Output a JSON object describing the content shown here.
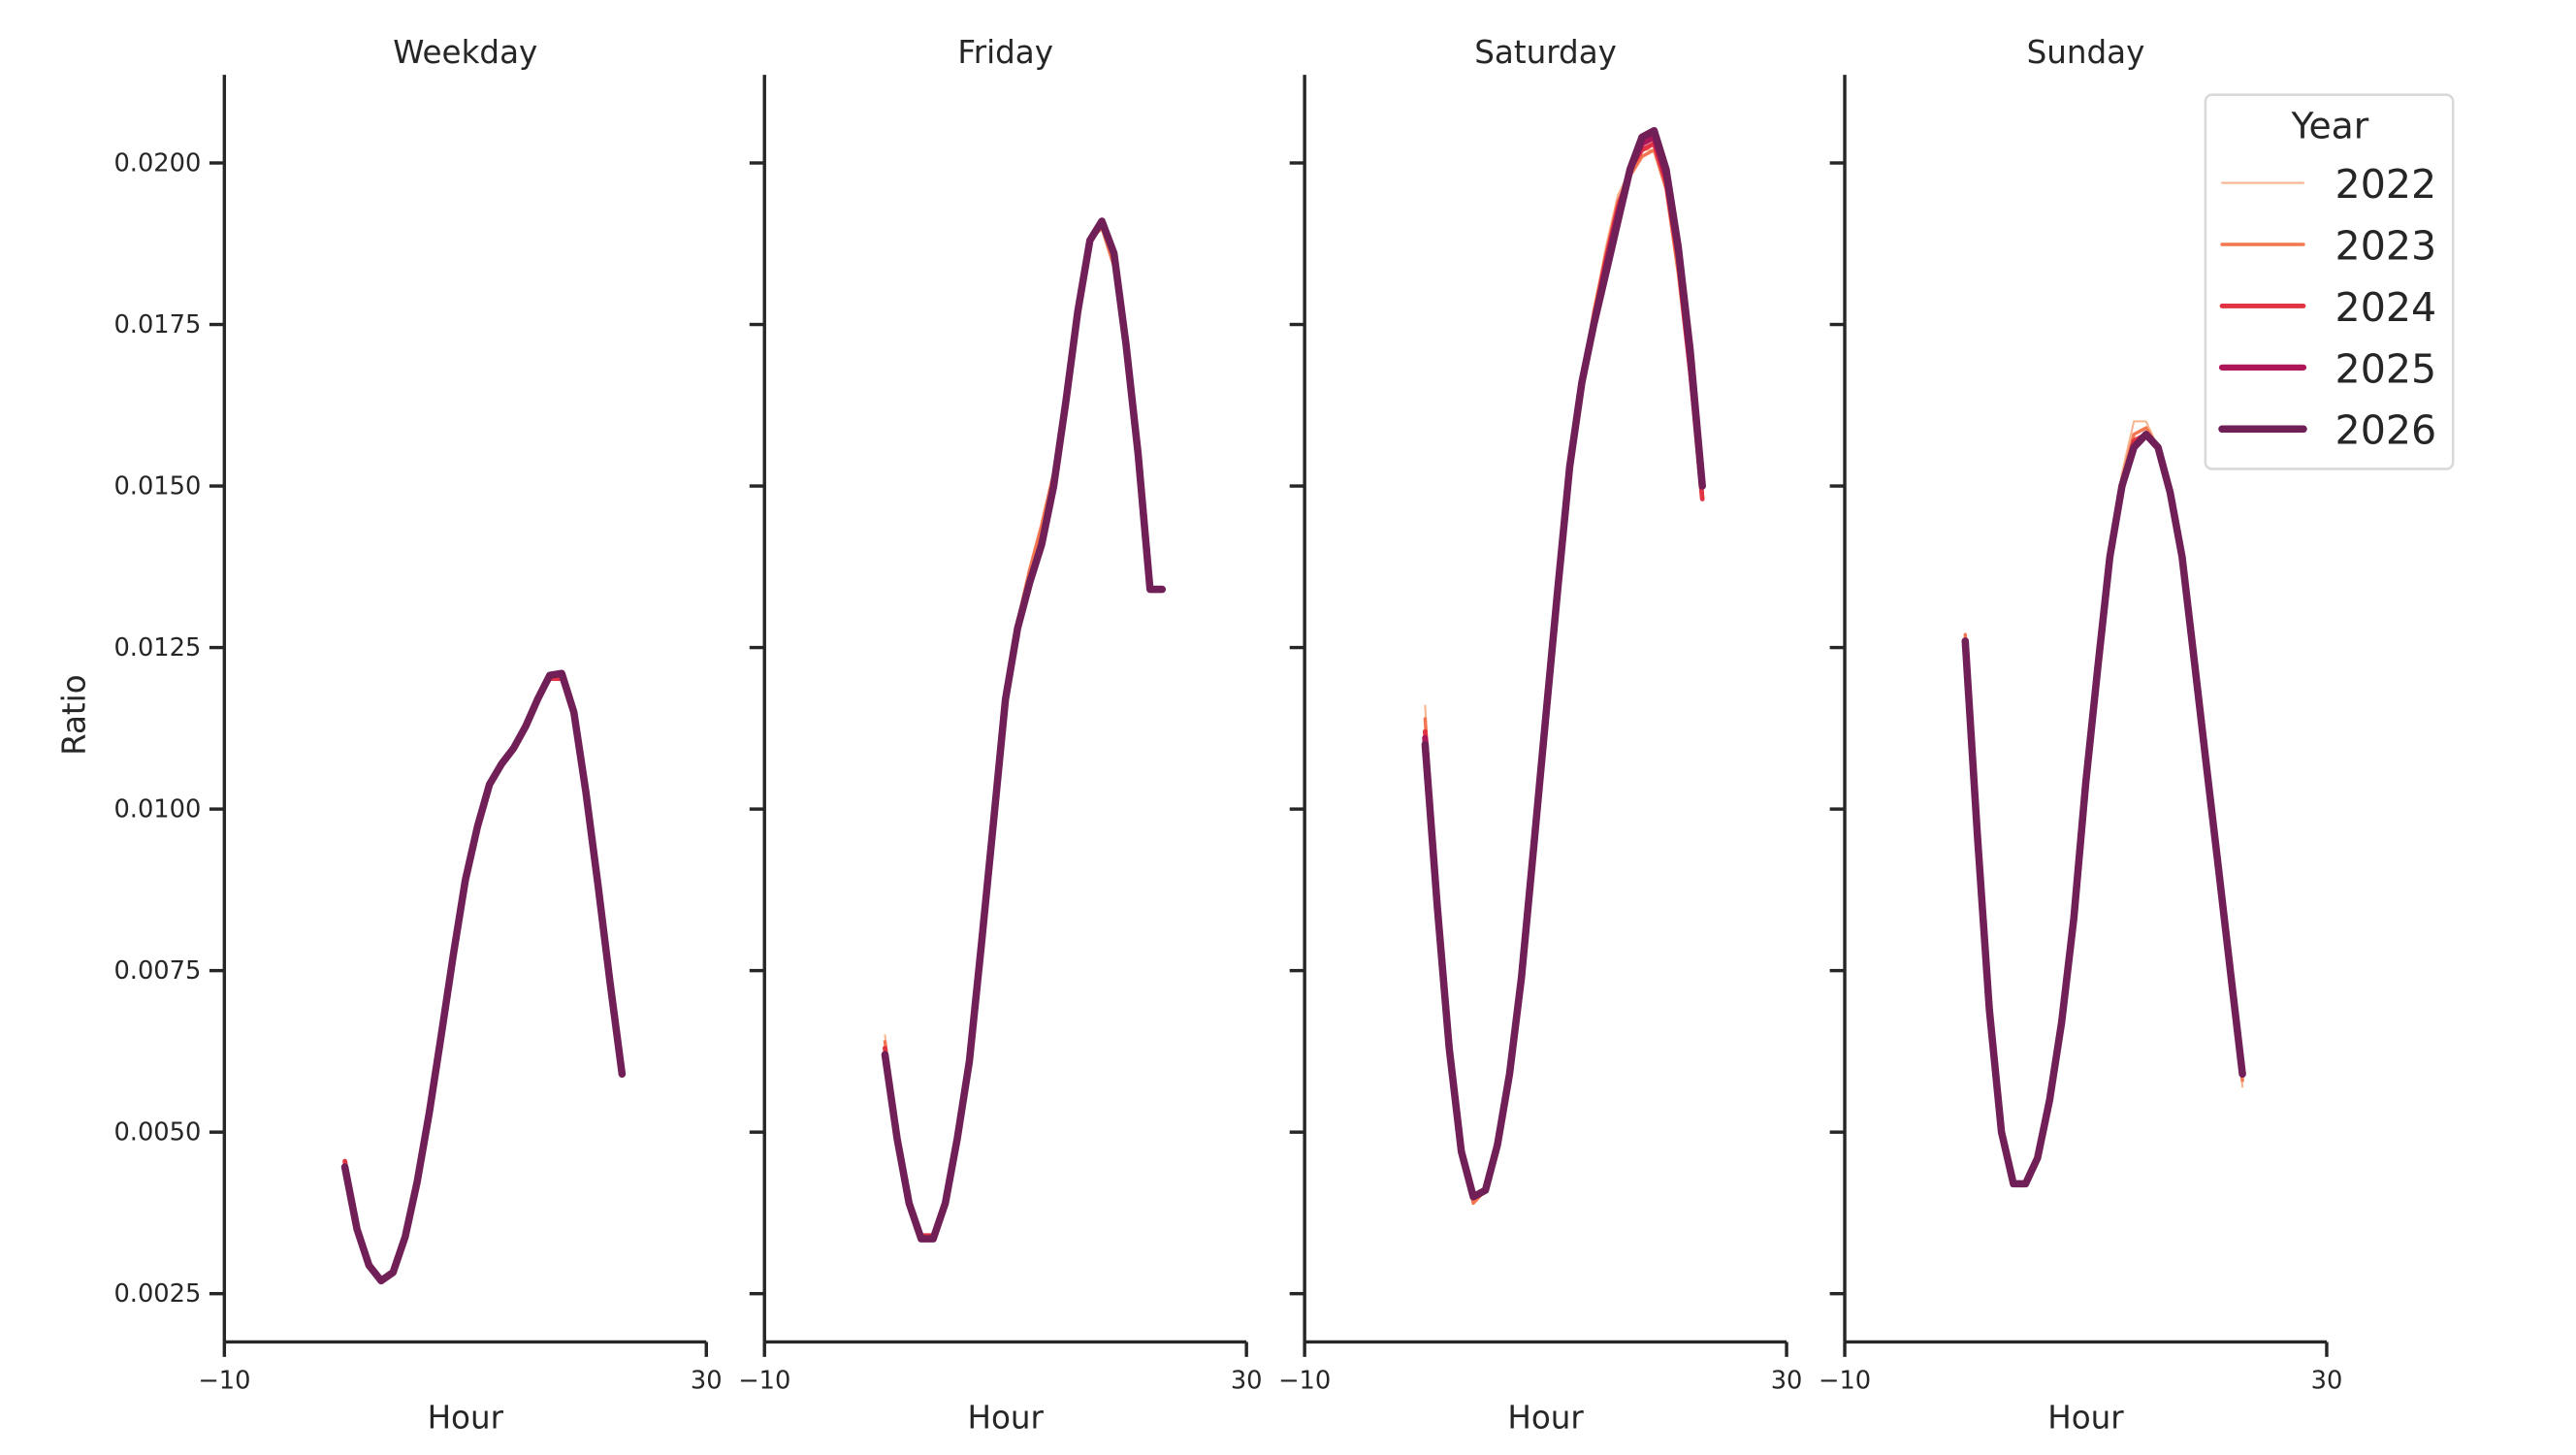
{
  "figure": {
    "y_axis_label": "Ratio",
    "x_axis_label": "Hour"
  },
  "legend": {
    "title": "Year",
    "items": [
      {
        "label": "2022",
        "color": "#f6b48f",
        "width": 1.2
      },
      {
        "label": "2023",
        "color": "#f37651",
        "width": 2.0
      },
      {
        "label": "2024",
        "color": "#e13342",
        "width": 2.8
      },
      {
        "label": "2025",
        "color": "#ad1759",
        "width": 3.6
      },
      {
        "label": "2026",
        "color": "#701f57",
        "width": 4.4
      }
    ]
  },
  "chart_data": {
    "type": "line",
    "title": "",
    "xlabel": "Hour",
    "ylabel": "Ratio",
    "xlim": [
      -10,
      30
    ],
    "xticks": [
      "−10",
      "30"
    ],
    "ylim": [
      0.0017,
      0.0214
    ],
    "yticks": [
      "0.0025",
      "0.0050",
      "0.0075",
      "0.0100",
      "0.0125",
      "0.0150",
      "0.0175",
      "0.0200"
    ],
    "grid": false,
    "legend_position": "upper right",
    "x": [
      0,
      1,
      2,
      3,
      4,
      5,
      6,
      7,
      8,
      9,
      10,
      11,
      12,
      13,
      14,
      15,
      16,
      17,
      18,
      19,
      20,
      21,
      22,
      23
    ],
    "panels": [
      {
        "title": "Weekday",
        "series": [
          {
            "name": "2022",
            "values": [
              0.00455,
              0.0035,
              0.00294,
              0.0027,
              0.00283,
              0.00338,
              0.00423,
              0.0053,
              0.0065,
              0.00775,
              0.0089,
              0.00973,
              0.01038,
              0.0107,
              0.01094,
              0.01128,
              0.0117,
              0.01205,
              0.01205,
              0.01145,
              0.01025,
              0.00883,
              0.00733,
              0.0059
            ]
          },
          {
            "name": "2023",
            "values": [
              0.0045,
              0.0035,
              0.00294,
              0.0027,
              0.00283,
              0.00338,
              0.00423,
              0.0053,
              0.0065,
              0.00775,
              0.0089,
              0.00973,
              0.01038,
              0.0107,
              0.01094,
              0.01128,
              0.0117,
              0.01205,
              0.01205,
              0.01148,
              0.01027,
              0.00883,
              0.00733,
              0.0059
            ]
          },
          {
            "name": "2024",
            "values": [
              0.00455,
              0.0035,
              0.00294,
              0.00272,
              0.00283,
              0.00338,
              0.00423,
              0.0053,
              0.0065,
              0.00775,
              0.0089,
              0.00973,
              0.01038,
              0.0107,
              0.01094,
              0.01128,
              0.0117,
              0.01202,
              0.01202,
              0.0115,
              0.01027,
              0.00883,
              0.00733,
              0.0059
            ]
          },
          {
            "name": "2025",
            "values": [
              0.00446,
              0.0035,
              0.00294,
              0.0027,
              0.00283,
              0.00338,
              0.00423,
              0.0053,
              0.0065,
              0.00775,
              0.0089,
              0.00973,
              0.01038,
              0.0107,
              0.01094,
              0.01128,
              0.0117,
              0.01207,
              0.0121,
              0.0115,
              0.01027,
              0.00883,
              0.00733,
              0.0059
            ]
          },
          {
            "name": "2026",
            "values": [
              0.00446,
              0.0035,
              0.00294,
              0.0027,
              0.00283,
              0.00338,
              0.00423,
              0.0053,
              0.0065,
              0.00775,
              0.0089,
              0.00973,
              0.01038,
              0.0107,
              0.01094,
              0.01128,
              0.0117,
              0.01207,
              0.0121,
              0.0115,
              0.01027,
              0.00883,
              0.00733,
              0.0059
            ]
          }
        ]
      },
      {
        "title": "Friday",
        "series": [
          {
            "name": "2022",
            "values": [
              0.0065,
              0.0049,
              0.0039,
              0.00335,
              0.00335,
              0.0039,
              0.0049,
              0.0062,
              0.008,
              0.0099,
              0.0118,
              0.0129,
              0.0137,
              0.0144,
              0.0152,
              0.0164,
              0.0177,
              0.0188,
              0.019,
              0.0185,
              0.0171,
              0.0155,
              0.0134,
              0.0134
            ]
          },
          {
            "name": "2023",
            "values": [
              0.0064,
              0.0049,
              0.0039,
              0.00335,
              0.00335,
              0.0039,
              0.0049,
              0.0062,
              0.008,
              0.0099,
              0.0118,
              0.0129,
              0.0137,
              0.0144,
              0.0152,
              0.0164,
              0.0177,
              0.0188,
              0.019,
              0.0184,
              0.017,
              0.0155,
              0.0134,
              0.0134
            ]
          },
          {
            "name": "2024",
            "values": [
              0.0063,
              0.0049,
              0.0039,
              0.0034,
              0.0034,
              0.0039,
              0.0049,
              0.0061,
              0.0079,
              0.0098,
              0.0117,
              0.0128,
              0.0135,
              0.0141,
              0.015,
              0.0163,
              0.0177,
              0.0188,
              0.0191,
              0.0186,
              0.0172,
              0.0155,
              0.0134,
              0.0134
            ]
          },
          {
            "name": "2025",
            "values": [
              0.0062,
              0.0049,
              0.0039,
              0.00335,
              0.00335,
              0.0039,
              0.0049,
              0.0061,
              0.0079,
              0.0098,
              0.0117,
              0.0128,
              0.0135,
              0.0141,
              0.015,
              0.0163,
              0.0177,
              0.0188,
              0.0191,
              0.0186,
              0.0172,
              0.0155,
              0.0134,
              0.0134
            ]
          },
          {
            "name": "2026",
            "values": [
              0.0062,
              0.0049,
              0.0039,
              0.00335,
              0.00335,
              0.0039,
              0.0049,
              0.0061,
              0.0079,
              0.0098,
              0.0117,
              0.0128,
              0.0135,
              0.0141,
              0.015,
              0.0163,
              0.0177,
              0.0188,
              0.0191,
              0.0186,
              0.0172,
              0.0155,
              0.0134,
              0.0134
            ]
          }
        ]
      },
      {
        "title": "Saturday",
        "series": [
          {
            "name": "2022",
            "values": [
              0.0116,
              0.0085,
              0.0063,
              0.0047,
              0.0039,
              0.0041,
              0.0048,
              0.0059,
              0.0074,
              0.0094,
              0.0114,
              0.0134,
              0.0153,
              0.0166,
              0.0177,
              0.0187,
              0.0195,
              0.0199,
              0.0202,
              0.0202,
              0.0196,
              0.0184,
              0.0168,
              0.0149
            ]
          },
          {
            "name": "2023",
            "values": [
              0.0114,
              0.0085,
              0.0063,
              0.0047,
              0.0039,
              0.0041,
              0.0048,
              0.0059,
              0.0074,
              0.0094,
              0.0114,
              0.0134,
              0.0153,
              0.0166,
              0.0177,
              0.0186,
              0.0194,
              0.0198,
              0.0201,
              0.0202,
              0.0196,
              0.0183,
              0.0167,
              0.0149
            ]
          },
          {
            "name": "2024",
            "values": [
              0.0112,
              0.0085,
              0.0063,
              0.0047,
              0.004,
              0.0041,
              0.0048,
              0.0059,
              0.0074,
              0.0094,
              0.0114,
              0.0134,
              0.0153,
              0.0166,
              0.0176,
              0.0185,
              0.0193,
              0.0199,
              0.0202,
              0.0203,
              0.0197,
              0.0185,
              0.0168,
              0.0148
            ]
          },
          {
            "name": "2025",
            "values": [
              0.0111,
              0.0085,
              0.0063,
              0.0047,
              0.004,
              0.0041,
              0.0048,
              0.0059,
              0.0074,
              0.0094,
              0.0114,
              0.0134,
              0.0153,
              0.0166,
              0.0175,
              0.0184,
              0.0192,
              0.0199,
              0.0203,
              0.0204,
              0.0198,
              0.0186,
              0.0169,
              0.015
            ]
          },
          {
            "name": "2026",
            "values": [
              0.011,
              0.0085,
              0.0063,
              0.0047,
              0.004,
              0.0041,
              0.0048,
              0.0059,
              0.0074,
              0.0094,
              0.0114,
              0.0134,
              0.0153,
              0.0166,
              0.0175,
              0.0183,
              0.0191,
              0.0199,
              0.0204,
              0.0205,
              0.0199,
              0.0187,
              0.0171,
              0.015
            ]
          }
        ]
      },
      {
        "title": "Sunday",
        "series": [
          {
            "name": "2022",
            "values": [
              0.0127,
              0.0096,
              0.0069,
              0.005,
              0.0042,
              0.0042,
              0.0046,
              0.0055,
              0.0067,
              0.0083,
              0.0104,
              0.0123,
              0.0141,
              0.0152,
              0.016,
              0.016,
              0.0156,
              0.0149,
              0.0139,
              0.0123,
              0.0107,
              0.0091,
              0.0075,
              0.0057
            ]
          },
          {
            "name": "2023",
            "values": [
              0.0127,
              0.0096,
              0.0069,
              0.005,
              0.0042,
              0.0042,
              0.0046,
              0.0055,
              0.0067,
              0.0083,
              0.0104,
              0.0122,
              0.014,
              0.0151,
              0.0158,
              0.0159,
              0.0156,
              0.0149,
              0.0139,
              0.0123,
              0.0107,
              0.0091,
              0.0075,
              0.0058
            ]
          },
          {
            "name": "2024",
            "values": [
              0.0126,
              0.0096,
              0.0069,
              0.005,
              0.0042,
              0.0042,
              0.0046,
              0.0055,
              0.0067,
              0.0083,
              0.0104,
              0.0122,
              0.0139,
              0.015,
              0.0157,
              0.0158,
              0.0156,
              0.0149,
              0.0139,
              0.0123,
              0.0107,
              0.0091,
              0.0075,
              0.0059
            ]
          },
          {
            "name": "2025",
            "values": [
              0.0126,
              0.0096,
              0.0069,
              0.005,
              0.0042,
              0.0042,
              0.0046,
              0.0055,
              0.0067,
              0.0083,
              0.0104,
              0.0122,
              0.0139,
              0.015,
              0.0156,
              0.0158,
              0.0156,
              0.0149,
              0.0139,
              0.0123,
              0.0107,
              0.0091,
              0.0075,
              0.0059
            ]
          },
          {
            "name": "2026",
            "values": [
              0.0126,
              0.0096,
              0.0069,
              0.005,
              0.0042,
              0.0042,
              0.0046,
              0.0055,
              0.0067,
              0.0083,
              0.0104,
              0.0122,
              0.0139,
              0.015,
              0.0156,
              0.0158,
              0.0156,
              0.0149,
              0.0139,
              0.0123,
              0.0107,
              0.0091,
              0.0075,
              0.0059
            ]
          }
        ]
      }
    ]
  }
}
